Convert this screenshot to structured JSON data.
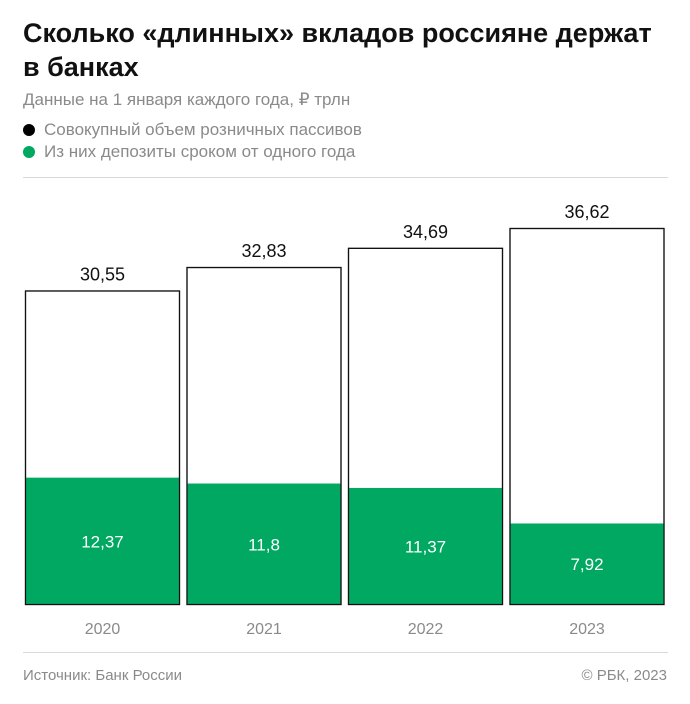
{
  "title": "Сколько «длинных» вкладов россияне держат в банках",
  "subtitle": "Данные на 1 января каждого года, ₽ трлн",
  "legend": [
    {
      "label": "Совокупный объем розничных пассивов",
      "color": "#000000"
    },
    {
      "label": "Из них депозиты сроком от одного года",
      "color": "#00a862"
    }
  ],
  "chart_data": {
    "type": "bar",
    "categories": [
      "2020",
      "2021",
      "2022",
      "2023"
    ],
    "series": [
      {
        "name": "Совокупный объем розничных пассивов",
        "values": [
          30.55,
          32.83,
          34.69,
          36.62
        ],
        "labels": [
          "30,55",
          "32,83",
          "34,69",
          "36,62"
        ]
      },
      {
        "name": "Из них депозиты сроком от одного года",
        "values": [
          12.37,
          11.8,
          11.37,
          7.92
        ],
        "labels": [
          "12,37",
          "11,8",
          "11,37",
          "7,92"
        ]
      }
    ],
    "ylim": [
      0,
      36.62
    ]
  },
  "colors": {
    "total_fill": "#ffffff",
    "total_stroke": "#111111",
    "long_fill": "#00a862"
  },
  "footer": {
    "source": "Источник: Банк России",
    "copyright": "© РБК, 2023"
  }
}
